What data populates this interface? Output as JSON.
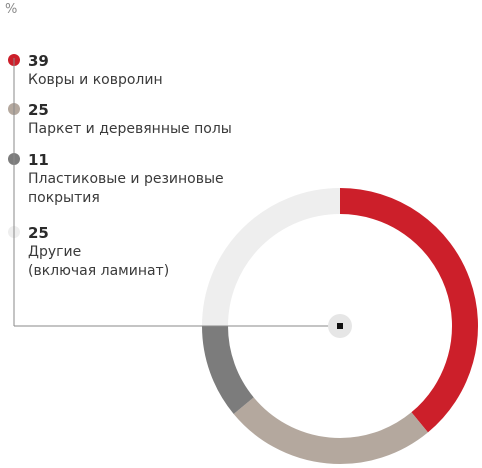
{
  "unit_label": "%",
  "chart_data": {
    "type": "pie",
    "style": "donut",
    "unit": "%",
    "slices": [
      {
        "value": 39,
        "label": "Ковры и ковролин",
        "color": "#cc1f2a"
      },
      {
        "value": 25,
        "label": "Паркет и деревянные полы",
        "color": "#b4a89e"
      },
      {
        "value": 11,
        "label": "Пластиковые и резиновые покрытия",
        "color": "#7c7c7c"
      },
      {
        "value": 25,
        "label": "Другие (включая ламинат)",
        "color": "#eeeeee"
      }
    ],
    "legend": "left"
  },
  "legend": [
    {
      "value": "39",
      "lines": [
        "Ковры и ковролин"
      ]
    },
    {
      "value": "25",
      "lines": [
        "Паркет и деревянные полы"
      ]
    },
    {
      "value": "11",
      "lines": [
        "Пластиковые и резиновые",
        "покрытия"
      ]
    },
    {
      "value": "25",
      "lines": [
        "Другие",
        "(включая ламинат)"
      ]
    }
  ]
}
